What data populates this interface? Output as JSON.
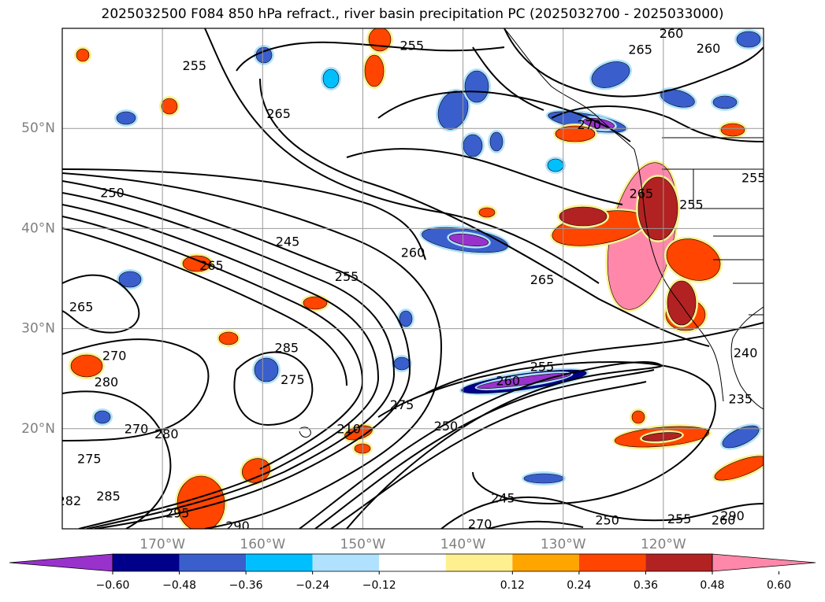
{
  "chart_data": {
    "type": "heatmap",
    "title": "2025032500 F084 850 hPa refract., river basin precipitation PC (2025032700 - 2025033000)",
    "lon_ticks": [
      "170°W",
      "160°W",
      "150°W",
      "140°W",
      "130°W",
      "120°W"
    ],
    "lat_ticks": [
      "50°N",
      "40°N",
      "30°N",
      "20°N"
    ],
    "lon_range": [
      -180,
      -110
    ],
    "lat_range": [
      10,
      60
    ],
    "grid": true,
    "colorbar": {
      "orientation": "horizontal",
      "extend": "both",
      "levels": [
        -0.6,
        -0.48,
        -0.36,
        -0.24,
        -0.12,
        0.12,
        0.24,
        0.36,
        0.48,
        0.6
      ],
      "level_labels": [
        "−0.60",
        "−0.48",
        "−0.36",
        "−0.24",
        "−0.12",
        "0.12",
        "0.24",
        "0.36",
        "0.48",
        "0.60"
      ],
      "colors": [
        "#9932cc",
        "#00008b",
        "#3a5fcd",
        "#00bfff",
        "#b0e2ff",
        "#ffffff",
        "#fff08f",
        "#ffa500",
        "#ff4500",
        "#b22222",
        "#ff88aa"
      ]
    },
    "contour_labels": [
      {
        "text": "255",
        "lon": -166.8,
        "lat": 56.2
      },
      {
        "text": "255",
        "lon": -145.1,
        "lat": 58.2
      },
      {
        "text": "260",
        "lon": -119.2,
        "lat": 59.4
      },
      {
        "text": "260",
        "lon": -115.5,
        "lat": 57.9
      },
      {
        "text": "265",
        "lon": -122.3,
        "lat": 57.8
      },
      {
        "text": "265",
        "lon": -158.4,
        "lat": 51.4
      },
      {
        "text": "270",
        "lon": -127.4,
        "lat": 50.3
      },
      {
        "text": "265",
        "lon": -122.2,
        "lat": 43.4
      },
      {
        "text": "255",
        "lon": -117.2,
        "lat": 42.3
      },
      {
        "text": "250",
        "lon": -175.0,
        "lat": 43.5
      },
      {
        "text": "245",
        "lon": -157.5,
        "lat": 38.6
      },
      {
        "text": "260",
        "lon": -145.0,
        "lat": 37.5
      },
      {
        "text": "265",
        "lon": -165.1,
        "lat": 36.2
      },
      {
        "text": "255",
        "lon": -151.6,
        "lat": 35.1
      },
      {
        "text": "265",
        "lon": -132.1,
        "lat": 34.8
      },
      {
        "text": "265",
        "lon": -178.1,
        "lat": 32.1
      },
      {
        "text": "285",
        "lon": -157.6,
        "lat": 28.0
      },
      {
        "text": "270",
        "lon": -174.8,
        "lat": 27.2
      },
      {
        "text": "275",
        "lon": -157.0,
        "lat": 24.8
      },
      {
        "text": "280",
        "lon": -175.6,
        "lat": 24.6
      },
      {
        "text": "255",
        "lon": -132.1,
        "lat": 26.1
      },
      {
        "text": "260",
        "lon": -135.5,
        "lat": 24.7
      },
      {
        "text": "275",
        "lon": -146.1,
        "lat": 22.3
      },
      {
        "text": "250",
        "lon": -141.7,
        "lat": 20.2
      },
      {
        "text": "210",
        "lon": -151.4,
        "lat": 19.9
      },
      {
        "text": "270",
        "lon": -172.6,
        "lat": 19.9
      },
      {
        "text": "280",
        "lon": -169.6,
        "lat": 19.4
      },
      {
        "text": "235",
        "lon": -112.3,
        "lat": 22.9
      },
      {
        "text": "240",
        "lon": -111.8,
        "lat": 27.5
      },
      {
        "text": "275",
        "lon": -177.3,
        "lat": 16.9
      },
      {
        "text": "285",
        "lon": -175.4,
        "lat": 13.2
      },
      {
        "text": "282",
        "lon": -179.3,
        "lat": 12.7
      },
      {
        "text": "245",
        "lon": -136.0,
        "lat": 13.0
      },
      {
        "text": "295",
        "lon": -168.5,
        "lat": 11.5
      },
      {
        "text": "290",
        "lon": -162.5,
        "lat": 10.2
      },
      {
        "text": "270",
        "lon": -138.3,
        "lat": 10.4
      },
      {
        "text": "250",
        "lon": -125.6,
        "lat": 10.8
      },
      {
        "text": "255",
        "lon": -118.4,
        "lat": 10.9
      },
      {
        "text": "260",
        "lon": -114.0,
        "lat": 10.8
      },
      {
        "text": "290",
        "lon": -113.1,
        "lat": 11.2
      },
      {
        "text": "255",
        "lon": -111.0,
        "lat": 45.0
      }
    ]
  }
}
